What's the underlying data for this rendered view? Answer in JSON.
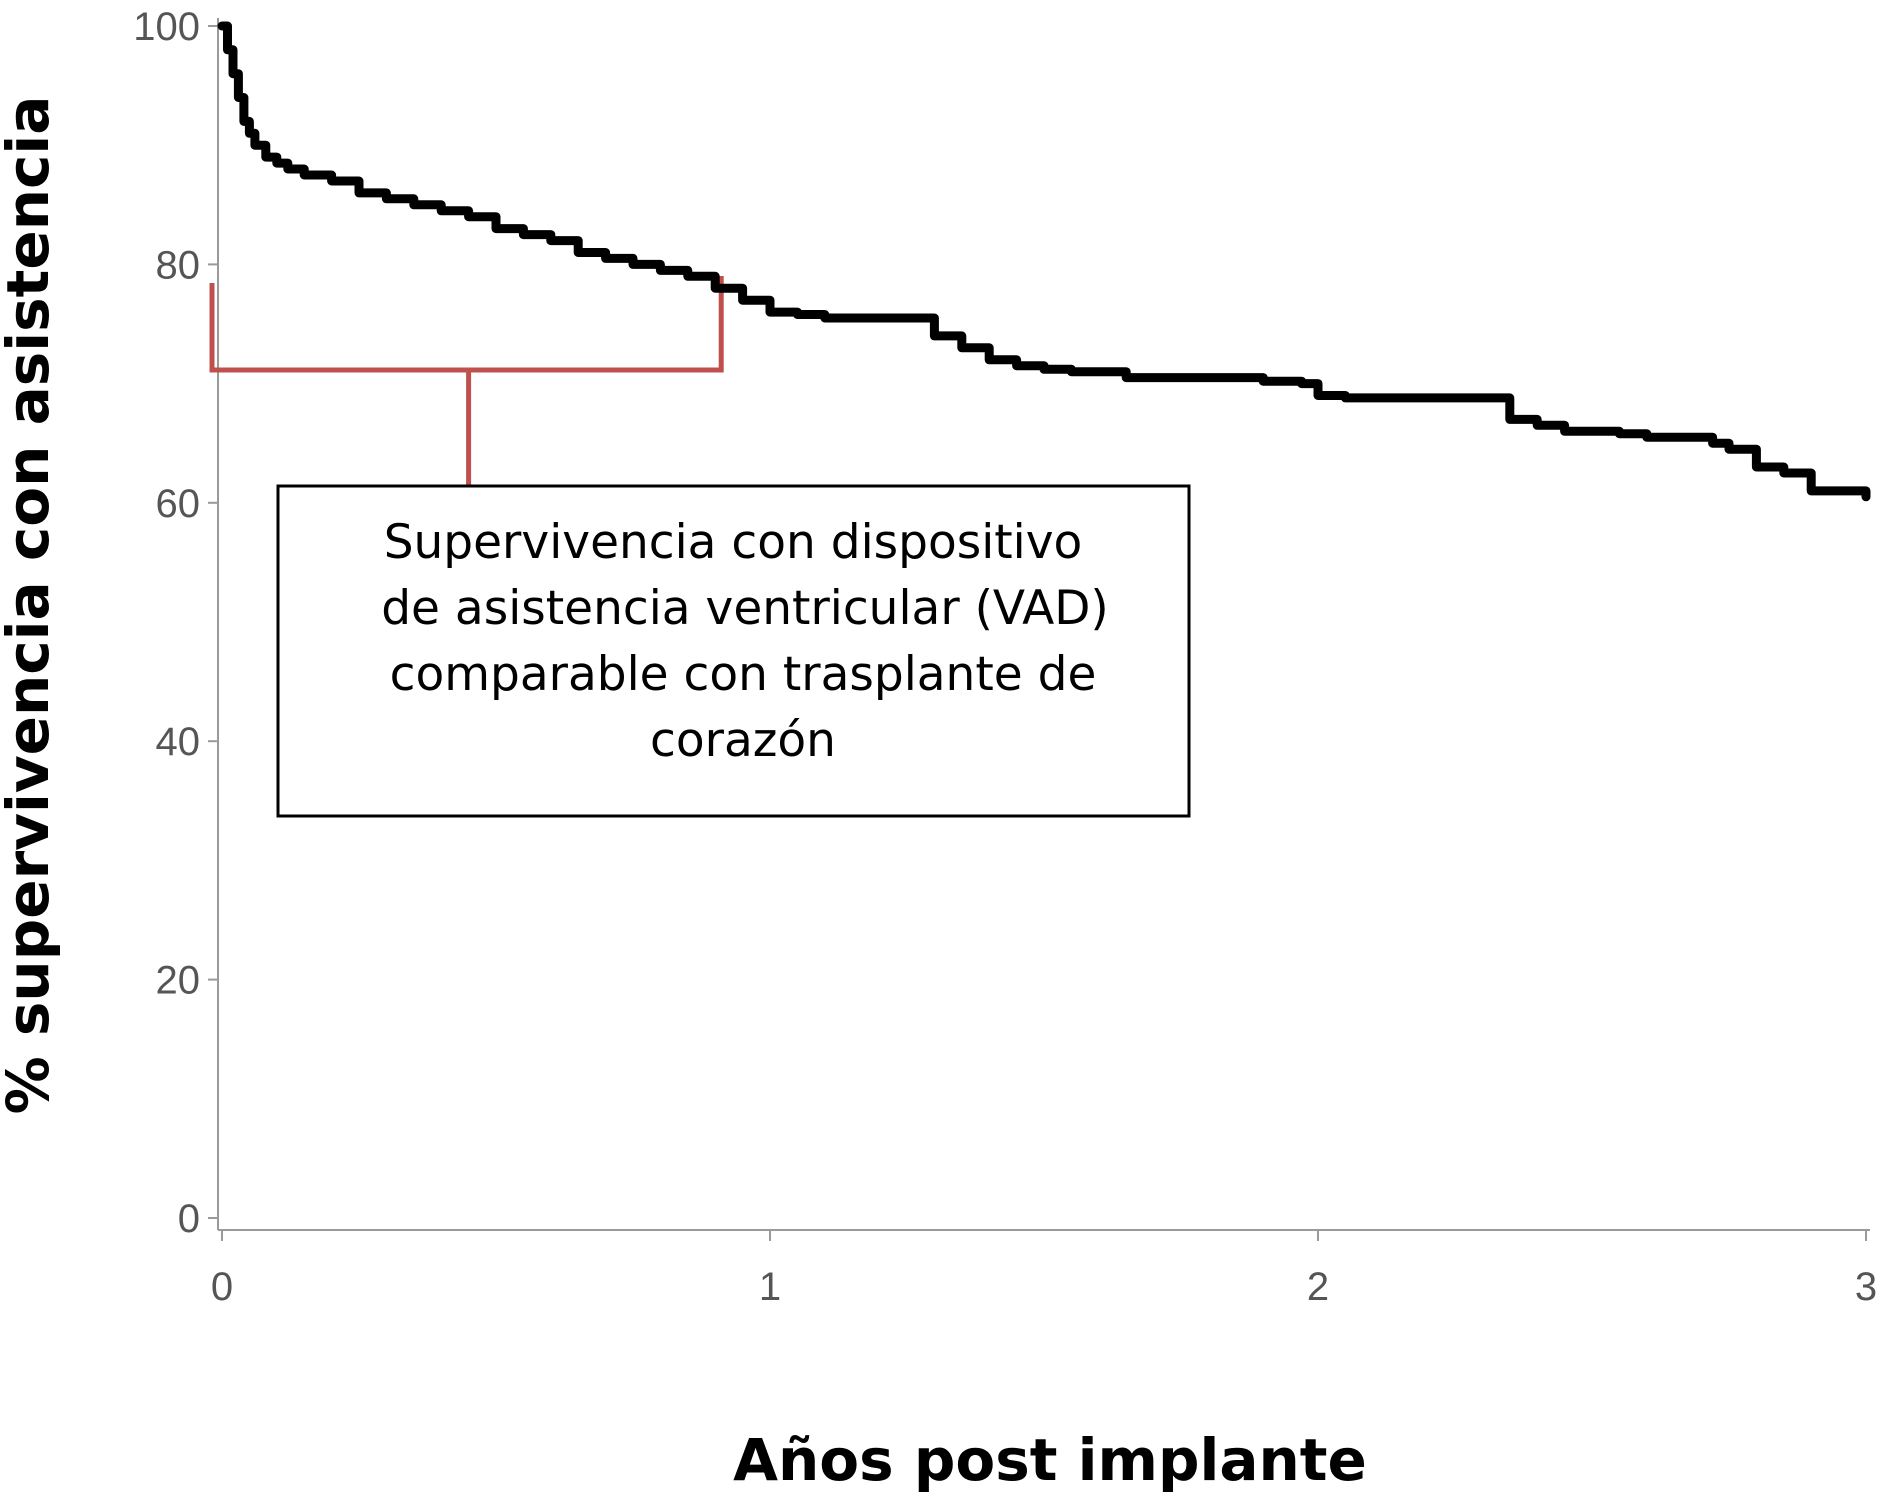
{
  "chart_data": {
    "type": "line",
    "title": "",
    "xlabel": "Años post implante",
    "ylabel": "% supervivencia con asistencia",
    "xlim": [
      0,
      3
    ],
    "ylim": [
      0,
      100
    ],
    "x_ticks": [
      "0",
      "1",
      "2",
      "3"
    ],
    "y_ticks": [
      "0",
      "20",
      "40",
      "60",
      "80",
      "100"
    ],
    "grid": false,
    "legend": "none",
    "series": [
      {
        "line_color": "#000000",
        "step": true,
        "x": [
          0,
          0.01,
          0.02,
          0.03,
          0.04,
          0.05,
          0.06,
          0.08,
          0.1,
          0.12,
          0.15,
          0.2,
          0.25,
          0.3,
          0.35,
          0.4,
          0.45,
          0.5,
          0.55,
          0.6,
          0.65,
          0.7,
          0.75,
          0.8,
          0.85,
          0.9,
          0.95,
          1.0,
          1.05,
          1.1,
          1.2,
          1.3,
          1.35,
          1.4,
          1.45,
          1.5,
          1.55,
          1.6,
          1.65,
          1.7,
          1.8,
          1.9,
          1.97,
          2.0,
          2.05,
          2.1,
          2.2,
          2.3,
          2.35,
          2.4,
          2.45,
          2.5,
          2.55,
          2.6,
          2.7,
          2.72,
          2.75,
          2.8,
          2.85,
          2.9,
          2.95,
          3.0
        ],
        "y": [
          100,
          98,
          96,
          94,
          92,
          91,
          90,
          89,
          88.5,
          88,
          87.5,
          87,
          86,
          85.5,
          85,
          84.5,
          84,
          83,
          82.5,
          82,
          81,
          80.5,
          80,
          79.5,
          79,
          78,
          77,
          76,
          75.8,
          75.5,
          75.5,
          74,
          73,
          72,
          71.5,
          71.2,
          71,
          71,
          70.5,
          70.5,
          70.5,
          70.2,
          70,
          69,
          68.8,
          68.8,
          68.8,
          68.8,
          67,
          66.5,
          66,
          66,
          65.8,
          65.5,
          65.5,
          65,
          64.5,
          63,
          62.5,
          61,
          61,
          60.5
        ]
      }
    ],
    "annotation": {
      "lines": [
        "Supervivencia con dispositivo",
        "de asistencia ventricular (VAD)",
        "comparable con trasplante de",
        "corazón"
      ],
      "bracket_x_range": [
        0,
        0.9
      ],
      "bracket_color": "#c0504d"
    }
  }
}
